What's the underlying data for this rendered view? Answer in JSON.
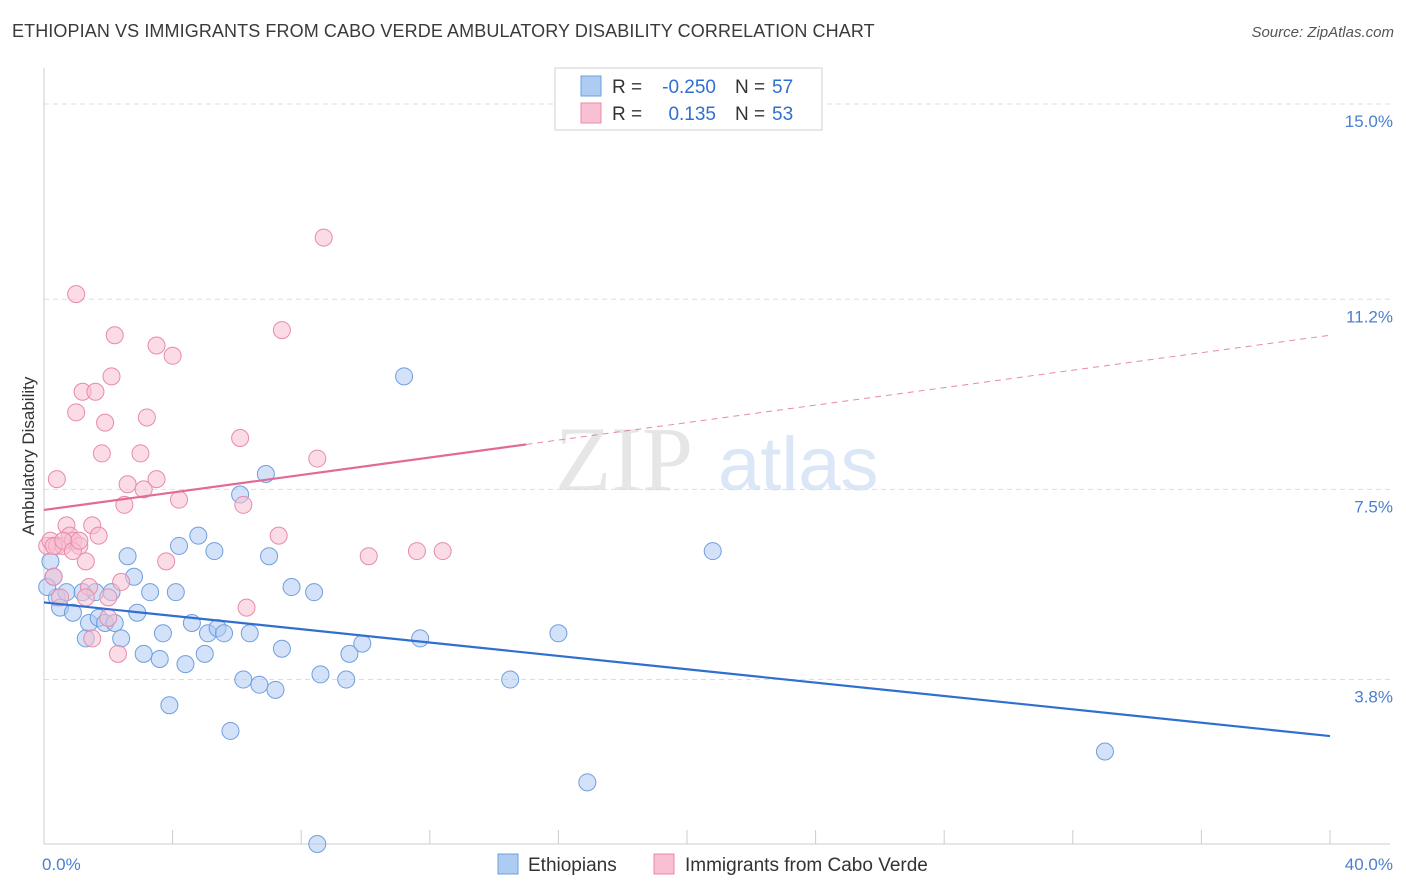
{
  "title": "ETHIOPIAN VS IMMIGRANTS FROM CABO VERDE AMBULATORY DISABILITY CORRELATION CHART",
  "source": "Source: ZipAtlas.com",
  "watermark": {
    "zip": "ZIP",
    "atlas": "atlas"
  },
  "colors": {
    "blue_fill": "#aecbf2",
    "blue_stroke": "#6f9fde",
    "blue_line": "#2f6fd0",
    "pink_fill": "#f8c0d2",
    "pink_stroke": "#e88aaa",
    "pink_line": "#e26a94",
    "tick": "#4a7fd1",
    "grid": "#dddddd"
  },
  "legend": {
    "rows": [
      {
        "r_label": "R =",
        "r_value": "-0.250",
        "n_label": "N =",
        "n_value": "57"
      },
      {
        "r_label": "R =",
        "r_value": "0.135",
        "n_label": "N =",
        "n_value": "53"
      }
    ]
  },
  "chart_data": {
    "type": "scatter",
    "title": "ETHIOPIAN VS IMMIGRANTS FROM CABO VERDE AMBULATORY DISABILITY CORRELATION CHART",
    "xlabel": "",
    "ylabel": "Ambulatory Disability",
    "xlim": [
      0,
      40
    ],
    "ylim": [
      0.6,
      15.7
    ],
    "x_tick_labels": [
      "0.0%",
      "40.0%"
    ],
    "y_ticks": [
      3.8,
      7.5,
      11.2,
      15.0
    ],
    "y_tick_labels": [
      "3.8%",
      "7.5%",
      "11.2%",
      "15.0%"
    ],
    "series": [
      {
        "name": "Ethiopians",
        "color": "blue",
        "trend": {
          "x0": 0,
          "y0": 5.3,
          "x1": 40,
          "y1": 2.7,
          "dashed_from": null
        },
        "points": [
          [
            0.2,
            6.1
          ],
          [
            0.3,
            5.8
          ],
          [
            0.4,
            5.4
          ],
          [
            0.5,
            5.2
          ],
          [
            0.7,
            5.5
          ],
          [
            0.9,
            5.1
          ],
          [
            1.2,
            5.5
          ],
          [
            1.3,
            4.6
          ],
          [
            1.4,
            4.9
          ],
          [
            1.6,
            5.5
          ],
          [
            1.7,
            5.0
          ],
          [
            1.9,
            4.9
          ],
          [
            2.1,
            5.5
          ],
          [
            2.2,
            4.9
          ],
          [
            2.4,
            4.6
          ],
          [
            2.6,
            6.2
          ],
          [
            2.8,
            5.8
          ],
          [
            2.9,
            5.1
          ],
          [
            3.1,
            4.3
          ],
          [
            3.3,
            5.5
          ],
          [
            3.6,
            4.2
          ],
          [
            3.7,
            4.7
          ],
          [
            3.9,
            3.3
          ],
          [
            4.1,
            5.5
          ],
          [
            4.2,
            6.4
          ],
          [
            4.4,
            4.1
          ],
          [
            4.6,
            4.9
          ],
          [
            4.8,
            6.6
          ],
          [
            5.0,
            4.3
          ],
          [
            5.1,
            4.7
          ],
          [
            5.3,
            6.3
          ],
          [
            5.4,
            4.8
          ],
          [
            5.6,
            4.7
          ],
          [
            5.8,
            2.8
          ],
          [
            6.1,
            7.4
          ],
          [
            6.2,
            3.8
          ],
          [
            6.4,
            4.7
          ],
          [
            6.7,
            3.7
          ],
          [
            6.9,
            7.8
          ],
          [
            7.0,
            6.2
          ],
          [
            7.2,
            3.6
          ],
          [
            7.4,
            4.4
          ],
          [
            7.7,
            5.6
          ],
          [
            8.4,
            5.5
          ],
          [
            8.5,
            0.6
          ],
          [
            8.6,
            3.9
          ],
          [
            9.4,
            3.8
          ],
          [
            9.5,
            4.3
          ],
          [
            9.9,
            4.5
          ],
          [
            11.2,
            9.7
          ],
          [
            11.7,
            4.6
          ],
          [
            14.5,
            3.8
          ],
          [
            16.0,
            4.7
          ],
          [
            16.9,
            1.8
          ],
          [
            20.8,
            6.3
          ],
          [
            33.0,
            2.4
          ],
          [
            0.1,
            5.6
          ]
        ]
      },
      {
        "name": "Immigrants from Cabo Verde",
        "color": "pink",
        "trend": {
          "x0": 0,
          "y0": 7.1,
          "x1": 40,
          "y1": 10.5,
          "dashed_from": 15.0
        },
        "points": [
          [
            0.1,
            6.4
          ],
          [
            0.2,
            6.5
          ],
          [
            0.3,
            5.8
          ],
          [
            0.4,
            6.4
          ],
          [
            0.4,
            7.7
          ],
          [
            0.5,
            5.4
          ],
          [
            0.6,
            6.4
          ],
          [
            0.7,
            6.8
          ],
          [
            0.8,
            6.6
          ],
          [
            0.9,
            6.5
          ],
          [
            1.0,
            11.3
          ],
          [
            1.0,
            9.0
          ],
          [
            1.1,
            6.4
          ],
          [
            1.2,
            9.4
          ],
          [
            1.3,
            6.1
          ],
          [
            1.4,
            5.6
          ],
          [
            1.5,
            6.8
          ],
          [
            1.6,
            9.4
          ],
          [
            1.7,
            6.6
          ],
          [
            1.8,
            8.2
          ],
          [
            1.9,
            8.8
          ],
          [
            2.0,
            5.0
          ],
          [
            2.1,
            9.7
          ],
          [
            2.2,
            10.5
          ],
          [
            2.3,
            4.3
          ],
          [
            2.4,
            5.7
          ],
          [
            2.5,
            7.2
          ],
          [
            2.6,
            7.6
          ],
          [
            3.0,
            8.2
          ],
          [
            3.1,
            7.5
          ],
          [
            3.2,
            8.9
          ],
          [
            3.5,
            7.7
          ],
          [
            3.5,
            10.3
          ],
          [
            3.8,
            6.1
          ],
          [
            4.0,
            10.1
          ],
          [
            4.2,
            7.3
          ],
          [
            6.1,
            8.5
          ],
          [
            6.2,
            7.2
          ],
          [
            6.3,
            5.2
          ],
          [
            7.3,
            6.6
          ],
          [
            7.4,
            10.6
          ],
          [
            8.5,
            8.1
          ],
          [
            8.7,
            12.4
          ],
          [
            10.1,
            6.2
          ],
          [
            11.6,
            6.3
          ],
          [
            12.4,
            6.3
          ],
          [
            0.3,
            6.4
          ],
          [
            0.6,
            6.5
          ],
          [
            0.9,
            6.3
          ],
          [
            1.1,
            6.5
          ],
          [
            1.3,
            5.4
          ],
          [
            1.5,
            4.6
          ],
          [
            2.0,
            5.4
          ]
        ]
      }
    ]
  },
  "bottom_legend": [
    {
      "label": "Ethiopians"
    },
    {
      "label": "Immigrants from Cabo Verde"
    }
  ]
}
